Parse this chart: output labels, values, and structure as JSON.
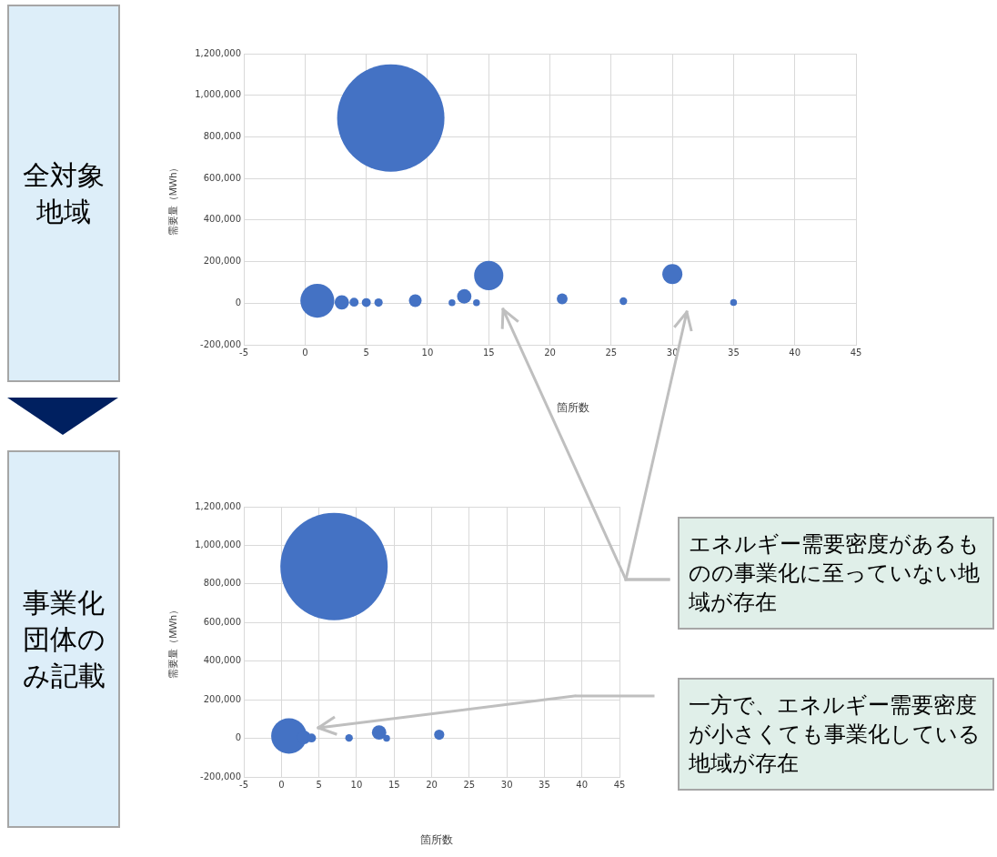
{
  "chart_data": [
    {
      "type": "bubble",
      "title": "全対象地域",
      "xlabel": "箇所数",
      "ylabel": "需要量（MWh）",
      "x": [
        1,
        3,
        4,
        5,
        6,
        7,
        9,
        12,
        13,
        14,
        15,
        21,
        26,
        30,
        35
      ],
      "series": [
        {
          "color": "#4472c4",
          "values": [
            12000,
            4000,
            5000,
            3000,
            3000,
            890000,
            12000,
            2000,
            33000,
            2000,
            133000,
            21000,
            10000,
            140000,
            3000
          ],
          "sizes": [
            0.1,
            0.018,
            0.007,
            0.007,
            0.006,
            1,
            0.014,
            0.004,
            0.018,
            0.004,
            0.074,
            0.01,
            0.005,
            0.035,
            0.004
          ]
        }
      ],
      "xlim": [
        -5,
        45
      ],
      "xticks": [
        -5,
        0,
        5,
        10,
        15,
        20,
        25,
        30,
        35,
        40,
        45
      ],
      "ylim": [
        -200000,
        1200000
      ],
      "yticks": [
        {
          "value": -200000,
          "label": "-200,000"
        },
        0,
        {
          "value": 200000,
          "label": "200,000"
        },
        {
          "value": 400000,
          "label": "400,000"
        },
        {
          "value": 600000,
          "label": "600,000"
        },
        {
          "value": 800000,
          "label": "800,000"
        },
        {
          "value": 1000000,
          "label": "1,000,000"
        },
        {
          "value": 1200000,
          "label": "1,200,000"
        }
      ],
      "grid": true,
      "legend": false,
      "annotations": [
        "エネルギー需要密度があるものの事業化に至っていない地域が存在"
      ]
    },
    {
      "type": "bubble",
      "title": "事業化団体のみ記載",
      "xlabel": "箇所数",
      "ylabel": "需要量（MWh）",
      "x": [
        1,
        3,
        4,
        7,
        9,
        13,
        14,
        21
      ],
      "series": [
        {
          "color": "#4472c4",
          "values": [
            12000,
            5000,
            2000,
            890000,
            2000,
            30000,
            0,
            19000
          ],
          "sizes": [
            0.11,
            0.016,
            0.007,
            1,
            0.005,
            0.018,
            0.004,
            0.009
          ]
        }
      ],
      "xlim": [
        -5,
        45
      ],
      "xticks": [
        -5,
        0,
        5,
        10,
        15,
        20,
        25,
        30,
        35,
        40,
        45
      ],
      "ylim": [
        -200000,
        1200000
      ],
      "yticks": [
        {
          "value": -200000,
          "label": "-200,000"
        },
        0,
        {
          "value": 200000,
          "label": "200,000"
        },
        {
          "value": 400000,
          "label": "400,000"
        },
        {
          "value": 600000,
          "label": "600,000"
        },
        {
          "value": 800000,
          "label": "800,000"
        },
        {
          "value": 1000000,
          "label": "1,000,000"
        },
        {
          "value": 1200000,
          "label": "1,200,000"
        }
      ],
      "grid": true,
      "legend": false,
      "annotations": [
        "一方で、エネルギー需要密度が小さくても事業化している地域が存在"
      ]
    }
  ]
}
